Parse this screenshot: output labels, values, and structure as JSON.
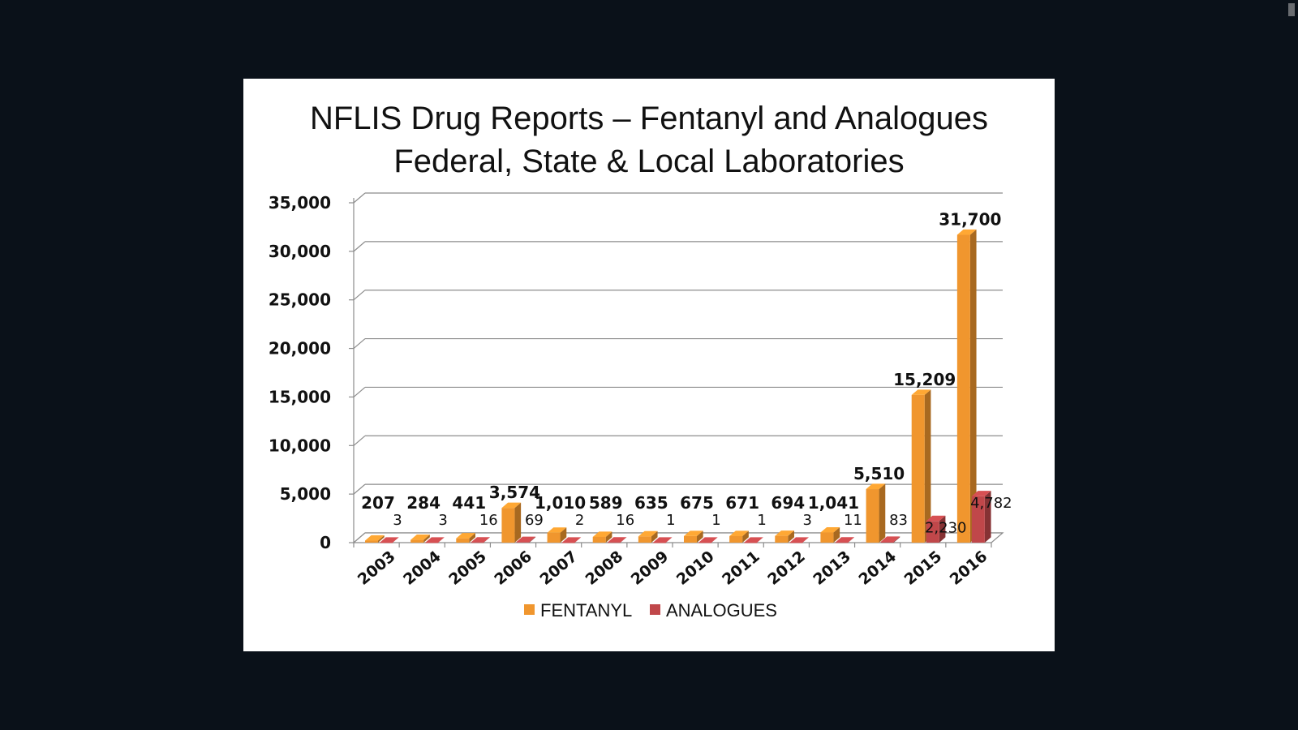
{
  "chart_data": {
    "type": "bar",
    "title": [
      "NFLIS Drug Reports – Fentanyl and Analogues",
      "Federal, State & Local Laboratories"
    ],
    "categories": [
      "2003",
      "2004",
      "2005",
      "2006",
      "2007",
      "2008",
      "2009",
      "2010",
      "2011",
      "2012",
      "2013",
      "2014",
      "2015",
      "2016"
    ],
    "series": [
      {
        "name": "FENTANYL",
        "color": "#f0962e",
        "values": [
          207,
          284,
          441,
          3574,
          1010,
          589,
          635,
          675,
          671,
          694,
          1041,
          5510,
          15209,
          31700
        ],
        "labels": [
          "207",
          "284",
          "441",
          "3,574",
          "1,010",
          "589",
          "635",
          "675",
          "671",
          "694",
          "1,041",
          "5,510",
          "15,209",
          "31,700"
        ]
      },
      {
        "name": "ANALOGUES",
        "color": "#c0474a",
        "values": [
          3,
          3,
          16,
          69,
          2,
          16,
          1,
          1,
          1,
          3,
          11,
          83,
          2230,
          4782
        ],
        "labels": [
          "3",
          "3",
          "16",
          "69",
          "2",
          "16",
          "1",
          "1",
          "1",
          "3",
          "11",
          "83",
          "2,230",
          "4,782"
        ]
      }
    ],
    "ylim": [
      0,
      35000
    ],
    "yticks": [
      "0",
      "5,000",
      "10,000",
      "15,000",
      "20,000",
      "25,000",
      "30,000",
      "35,000"
    ],
    "xlabel": "",
    "ylabel": "",
    "grid": true,
    "legend": "bottom-center",
    "three_d": true
  }
}
